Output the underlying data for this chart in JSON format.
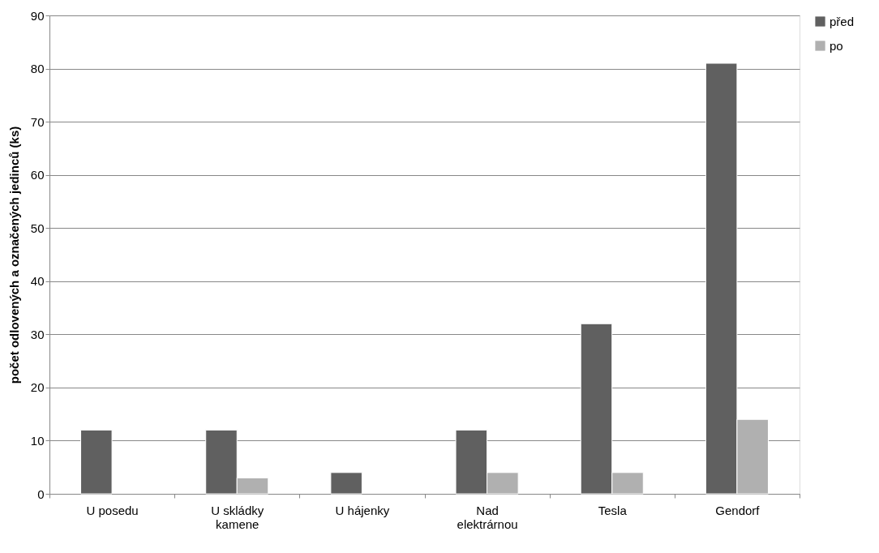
{
  "chart_data": {
    "type": "bar",
    "ylabel": "počet odlovených a označených jedinců (ks)",
    "categories": [
      "U posedu",
      "U skládky kamene",
      "U hájenky",
      "Nad elektrárnou",
      "Tesla",
      "Gendorf"
    ],
    "series": [
      {
        "name": "před",
        "color": "#606060",
        "values": [
          12,
          12,
          4,
          12,
          32,
          81
        ]
      },
      {
        "name": "po",
        "color": "#b0b0b0",
        "values": [
          null,
          3,
          null,
          4,
          4,
          14
        ]
      }
    ],
    "ylim": [
      0,
      90
    ],
    "yticks": [
      0,
      10,
      20,
      30,
      40,
      50,
      60,
      70,
      80,
      90
    ],
    "grid": "y",
    "legend": "right"
  }
}
